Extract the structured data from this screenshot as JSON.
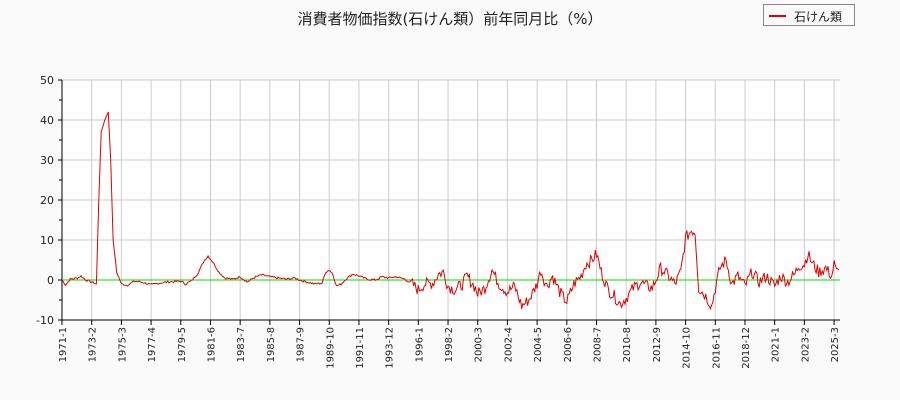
{
  "title": "消費者物価指数(石けん類）前年同月比（%）",
  "legend": {
    "label": "石けん類",
    "color": "#e00000"
  },
  "chart_data": {
    "type": "line",
    "title": "消費者物価指数(石けん類）前年同月比（%）",
    "xlabel": "",
    "ylabel": "",
    "ylim": [
      -10,
      50
    ],
    "yticks": [
      -10,
      0,
      10,
      20,
      30,
      40,
      50
    ],
    "grid": true,
    "legend_position": "top-right",
    "reference_line": {
      "y": 0,
      "color": "#00dd00"
    },
    "x_tick_labels": [
      "1971-1",
      "1973-2",
      "1975-3",
      "1977-4",
      "1979-5",
      "1981-6",
      "1983-7",
      "1985-8",
      "1987-9",
      "1989-10",
      "1991-11",
      "1993-12",
      "1996-1",
      "1998-2",
      "2000-3",
      "2002-4",
      "2004-5",
      "2006-6",
      "2008-7",
      "2010-8",
      "2012-9",
      "2014-10",
      "2016-11",
      "2018-12",
      "2021-1",
      "2023-2",
      "2025-3"
    ],
    "series": [
      {
        "name": "石けん類",
        "color": "#e00000",
        "x_range": [
          "1971-1",
          "2025-7"
        ],
        "points": [
          [
            "1971-1",
            0
          ],
          [
            "1971-4",
            -1.2
          ],
          [
            "1971-8",
            0.2
          ],
          [
            "1972-2",
            0.5
          ],
          [
            "1972-5",
            1.0
          ],
          [
            "1972-9",
            0
          ],
          [
            "1973-2",
            -0.5
          ],
          [
            "1973-6",
            -1.0
          ],
          [
            "1973-8",
            20
          ],
          [
            "1973-10",
            37
          ],
          [
            "1974-1",
            40
          ],
          [
            "1974-4",
            42
          ],
          [
            "1974-6",
            30
          ],
          [
            "1974-8",
            10
          ],
          [
            "1974-11",
            2
          ],
          [
            "1975-3",
            -1.0
          ],
          [
            "1975-8",
            -1.3
          ],
          [
            "1976-2",
            -0.3
          ],
          [
            "1976-8",
            -0.5
          ],
          [
            "1977-4",
            -1.2
          ],
          [
            "1977-10",
            -0.8
          ],
          [
            "1978-6",
            -0.5
          ],
          [
            "1979-5",
            -0.3
          ],
          [
            "1979-9",
            -1.0
          ],
          [
            "1980-2",
            -0.2
          ],
          [
            "1980-7",
            1.5
          ],
          [
            "1981-1",
            5.0
          ],
          [
            "1981-4",
            6.0
          ],
          [
            "1981-8",
            4.5
          ],
          [
            "1982-1",
            2.0
          ],
          [
            "1982-6",
            0.5
          ],
          [
            "1983-1",
            0.2
          ],
          [
            "1983-7",
            0.8
          ],
          [
            "1984-1",
            -0.5
          ],
          [
            "1984-6",
            0.5
          ],
          [
            "1985-1",
            1.3
          ],
          [
            "1985-8",
            0.8
          ],
          [
            "1986-3",
            0.5
          ],
          [
            "1986-10",
            0.2
          ],
          [
            "1987-5",
            0.5
          ],
          [
            "1987-9",
            0
          ],
          [
            "1988-3",
            -0.5
          ],
          [
            "1988-10",
            -1.0
          ],
          [
            "1989-4",
            -0.8
          ],
          [
            "1989-7",
            2.0
          ],
          [
            "1989-10",
            2.5
          ],
          [
            "1990-1",
            1.5
          ],
          [
            "1990-4",
            -1.5
          ],
          [
            "1990-8",
            -1.0
          ],
          [
            "1991-1",
            0.5
          ],
          [
            "1991-6",
            1.5
          ],
          [
            "1991-11",
            1.0
          ],
          [
            "1992-6",
            0.2
          ],
          [
            "1993-1",
            0
          ],
          [
            "1993-6",
            0.8
          ],
          [
            "1993-12",
            0.5
          ],
          [
            "1994-6",
            0.8
          ],
          [
            "1995-1",
            0.3
          ],
          [
            "1995-8",
            -1.0
          ],
          [
            "1996-1",
            -2.5
          ],
          [
            "1996-6",
            -1.0
          ],
          [
            "1997-1",
            -0.8
          ],
          [
            "1997-6",
            1.5
          ],
          [
            "1997-10",
            2.0
          ],
          [
            "1998-2",
            -1.5
          ],
          [
            "1998-8",
            -2.5
          ],
          [
            "1999-2",
            -1.0
          ],
          [
            "1999-6",
            1.0
          ],
          [
            "2000-1",
            -2.0
          ],
          [
            "2000-3",
            -3.5
          ],
          [
            "2000-9",
            -2.0
          ],
          [
            "2001-3",
            2.5
          ],
          [
            "2001-9",
            -1.0
          ],
          [
            "2002-4",
            -3.0
          ],
          [
            "2002-10",
            -1.5
          ],
          [
            "2003-4",
            -6.5
          ],
          [
            "2003-10",
            -5.0
          ],
          [
            "2004-5",
            -1.0
          ],
          [
            "2004-8",
            2.5
          ],
          [
            "2005-1",
            -1.5
          ],
          [
            "2005-6",
            1.0
          ],
          [
            "2005-12",
            -3.0
          ],
          [
            "2006-6",
            -5.5
          ],
          [
            "2006-12",
            -1.0
          ],
          [
            "2007-6",
            1.0
          ],
          [
            "2007-10",
            4.0
          ],
          [
            "2008-3",
            5.0
          ],
          [
            "2008-7",
            6.5
          ],
          [
            "2008-11",
            2.0
          ],
          [
            "2009-5",
            -2.5
          ],
          [
            "2009-10",
            -4.0
          ],
          [
            "2010-3",
            -6.0
          ],
          [
            "2010-8",
            -4.5
          ],
          [
            "2011-2",
            -2.0
          ],
          [
            "2011-8",
            -0.5
          ],
          [
            "2012-1",
            -1.5
          ],
          [
            "2012-6",
            -2.0
          ],
          [
            "2012-9",
            0
          ],
          [
            "2013-1",
            3.0
          ],
          [
            "2013-6",
            1.5
          ],
          [
            "2014-1",
            -1.0
          ],
          [
            "2014-6",
            2.0
          ],
          [
            "2014-10",
            10.5
          ],
          [
            "2015-3",
            12.5
          ],
          [
            "2015-6",
            12.0
          ],
          [
            "2015-9",
            -2.0
          ],
          [
            "2016-3",
            -4.0
          ],
          [
            "2016-8",
            -6.5
          ],
          [
            "2016-11",
            -2.0
          ],
          [
            "2017-3",
            3.0
          ],
          [
            "2017-8",
            5.0
          ],
          [
            "2018-1",
            -1.0
          ],
          [
            "2018-6",
            1.0
          ],
          [
            "2018-12",
            -1.5
          ],
          [
            "2019-6",
            2.0
          ],
          [
            "2019-12",
            -0.5
          ],
          [
            "2020-6",
            1.0
          ],
          [
            "2021-1",
            -1.5
          ],
          [
            "2021-6",
            1.0
          ],
          [
            "2021-12",
            -0.5
          ],
          [
            "2022-6",
            1.5
          ],
          [
            "2022-9",
            3.5
          ],
          [
            "2023-2",
            4.0
          ],
          [
            "2023-5",
            6.5
          ],
          [
            "2023-9",
            4.0
          ],
          [
            "2024-2",
            2.0
          ],
          [
            "2024-8",
            3.0
          ],
          [
            "2025-1",
            1.0
          ],
          [
            "2025-3",
            4.0
          ],
          [
            "2025-5",
            2.0
          ],
          [
            "2025-7",
            2.5
          ]
        ]
      }
    ]
  }
}
